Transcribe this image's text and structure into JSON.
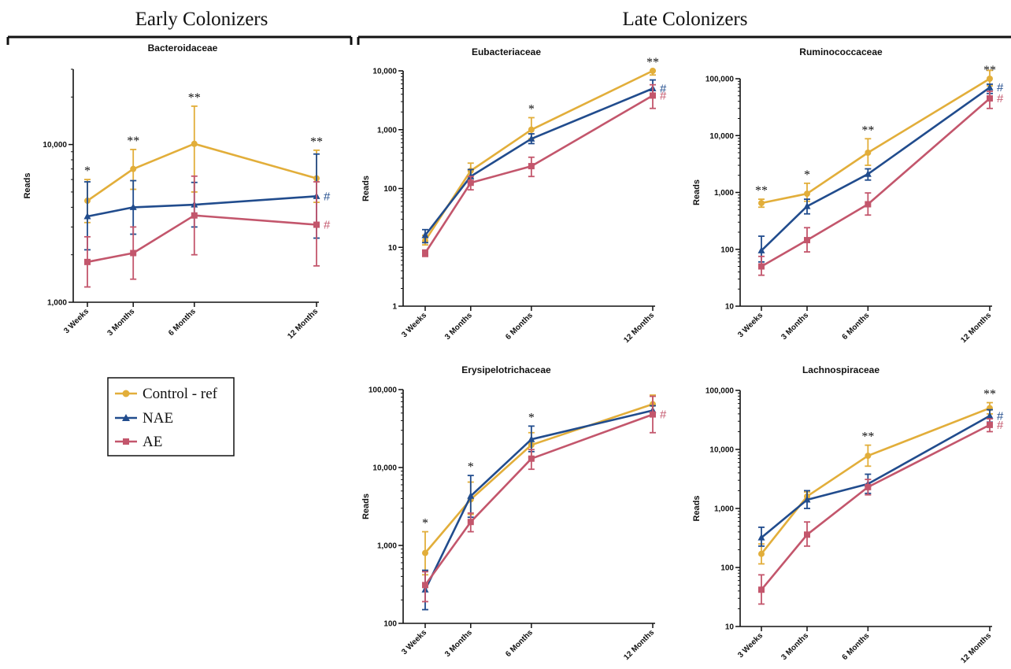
{
  "sections": [
    {
      "title": "Early Colonizers"
    },
    {
      "title": "Late Colonizers"
    }
  ],
  "legend": {
    "items": [
      {
        "label": "Control - ref",
        "color": "#E2AE3A",
        "marker": "circle"
      },
      {
        "label": "NAE",
        "color": "#214C8D",
        "marker": "triangle"
      },
      {
        "label": "AE",
        "color": "#C3566C",
        "marker": "square"
      }
    ]
  },
  "chart_data": [
    {
      "type": "line",
      "title": "Bacteroidaceae",
      "xlabel": "",
      "ylabel": "Reads",
      "yscale": "log",
      "ylim": [
        1000,
        30000
      ],
      "yticks": [
        1000,
        10000
      ],
      "ytick_labels": [
        "1,000",
        "10,000"
      ],
      "categories": [
        "3 Weeks",
        "3 Months",
        "6 Months",
        "12 Months"
      ],
      "x": [
        0.75,
        3,
        6,
        12
      ],
      "series": [
        {
          "name": "Control - ref",
          "values": [
            4400,
            7000,
            10100,
            6100
          ],
          "err_low": [
            3200,
            5200,
            5000,
            4300
          ],
          "err_high": [
            6000,
            9300,
            17500,
            9200
          ]
        },
        {
          "name": "NAE",
          "values": [
            3500,
            4000,
            4150,
            4700
          ],
          "err_low": [
            2150,
            2700,
            3000,
            2550
          ],
          "err_high": [
            5800,
            5900,
            5750,
            8700
          ]
        },
        {
          "name": "AE",
          "values": [
            1800,
            2050,
            3550,
            3100
          ],
          "err_low": [
            1250,
            1400,
            2000,
            1700
          ],
          "err_high": [
            2600,
            3000,
            6300,
            5800
          ]
        }
      ],
      "significance": [
        "*",
        "**",
        "**",
        "**"
      ],
      "series_marks": {
        "NAE": "#",
        "AE": "#"
      }
    },
    {
      "type": "line",
      "title": "Eubacteriaceae",
      "xlabel": "",
      "ylabel": "Reads",
      "yscale": "log",
      "ylim": [
        1,
        10000
      ],
      "yticks": [
        1,
        10,
        100,
        1000,
        10000
      ],
      "ytick_labels": [
        "1",
        "10",
        "100",
        "1,000",
        "10,000"
      ],
      "categories": [
        "3 Weeks",
        "3 Months",
        "6 Months",
        "12 Months"
      ],
      "x": [
        0.75,
        3,
        6,
        12
      ],
      "series": [
        {
          "name": "Control - ref",
          "values": [
            13,
            200,
            1000,
            10000
          ],
          "err_low": [
            11,
            150,
            700,
            8500
          ],
          "err_high": [
            16,
            270,
            1600,
            10000
          ]
        },
        {
          "name": "NAE",
          "values": [
            16,
            160,
            700,
            5000
          ],
          "err_low": [
            12,
            125,
            580,
            3800
          ],
          "err_high": [
            20,
            210,
            850,
            7000
          ]
        },
        {
          "name": "AE",
          "values": [
            8,
            125,
            240,
            3800
          ],
          "err_low": [
            7,
            95,
            160,
            2300
          ],
          "err_high": [
            9,
            160,
            340,
            5800
          ]
        }
      ],
      "significance": [
        "",
        "",
        "*",
        "**"
      ],
      "series_marks": {
        "NAE": "#",
        "AE": "#"
      }
    },
    {
      "type": "line",
      "title": "Ruminococcaceae",
      "xlabel": "",
      "ylabel": "Reads",
      "yscale": "log",
      "ylim": [
        10,
        100000
      ],
      "yticks": [
        10,
        100,
        1000,
        10000,
        100000
      ],
      "ytick_labels": [
        "10",
        "100",
        "1,000",
        "10,000",
        "100,000"
      ],
      "categories": [
        "3 Weeks",
        "3 Months",
        "6 Months",
        "12 Months"
      ],
      "x": [
        0.75,
        3,
        6,
        12
      ],
      "series": [
        {
          "name": "Control - ref",
          "values": [
            650,
            950,
            5000,
            100000
          ],
          "err_low": [
            550,
            700,
            3000,
            75000
          ],
          "err_high": [
            760,
            1450,
            8800,
            140000
          ]
        },
        {
          "name": "NAE",
          "values": [
            95,
            570,
            2100,
            70000
          ],
          "err_low": [
            60,
            420,
            1650,
            55000
          ],
          "err_high": [
            170,
            760,
            2600,
            80000
          ]
        },
        {
          "name": "AE",
          "values": [
            50,
            145,
            620,
            45000
          ],
          "err_low": [
            35,
            90,
            400,
            30000
          ],
          "err_high": [
            75,
            240,
            980,
            60000
          ]
        }
      ],
      "significance": [
        "**",
        "*",
        "**",
        "**"
      ],
      "series_marks": {
        "NAE": "#",
        "AE": "#"
      }
    },
    {
      "type": "line",
      "title": "Erysipelotrichaceae",
      "xlabel": "",
      "ylabel": "Reads",
      "yscale": "log",
      "ylim": [
        100,
        100000
      ],
      "yticks": [
        100,
        1000,
        10000,
        100000
      ],
      "ytick_labels": [
        "100",
        "1,000",
        "10,000",
        "100,000"
      ],
      "categories": [
        "3 Weeks",
        "3 Months",
        "6 Months",
        "12 Months"
      ],
      "x": [
        0.75,
        3,
        6,
        12
      ],
      "series": [
        {
          "name": "Control - ref",
          "values": [
            800,
            3900,
            19500,
            65000
          ],
          "err_low": [
            420,
            2500,
            13500,
            45000
          ],
          "err_high": [
            1500,
            6500,
            28000,
            85000
          ]
        },
        {
          "name": "NAE",
          "values": [
            270,
            4300,
            23000,
            54000
          ],
          "err_low": [
            150,
            2300,
            16000,
            48000
          ],
          "err_high": [
            480,
            7900,
            34000,
            62000
          ]
        },
        {
          "name": "AE",
          "values": [
            310,
            2000,
            13000,
            48000
          ],
          "err_low": [
            190,
            1500,
            9500,
            28000
          ],
          "err_high": [
            460,
            2600,
            17000,
            82000
          ]
        }
      ],
      "significance": [
        "*",
        "*",
        "*",
        ""
      ],
      "series_marks": {
        "AE": "#"
      }
    },
    {
      "type": "line",
      "title": "Lachnospiraceae",
      "xlabel": "",
      "ylabel": "Reads",
      "yscale": "log",
      "ylim": [
        10,
        100000
      ],
      "yticks": [
        10,
        100,
        1000,
        10000,
        100000
      ],
      "ytick_labels": [
        "10",
        "100",
        "1,000",
        "10,000",
        "100,000"
      ],
      "categories": [
        "3 Weeks",
        "3 Months",
        "6 Months",
        "12 Months"
      ],
      "x": [
        0.75,
        3,
        6,
        12
      ],
      "series": [
        {
          "name": "Control - ref",
          "values": [
            170,
            1600,
            7800,
            50000
          ],
          "err_low": [
            115,
            1300,
            5200,
            40000
          ],
          "err_high": [
            250,
            1900,
            11800,
            62000
          ]
        },
        {
          "name": "NAE",
          "values": [
            320,
            1400,
            2600,
            37000
          ],
          "err_low": [
            230,
            1000,
            1800,
            29000
          ],
          "err_high": [
            480,
            2000,
            3800,
            47000
          ]
        },
        {
          "name": "AE",
          "values": [
            42,
            360,
            2300,
            26000
          ],
          "err_low": [
            24,
            230,
            1700,
            20000
          ],
          "err_high": [
            75,
            590,
            3100,
            33000
          ]
        }
      ],
      "significance": [
        "",
        "",
        "**",
        "**"
      ],
      "series_marks": {
        "NAE": "#",
        "AE": "#"
      }
    }
  ]
}
